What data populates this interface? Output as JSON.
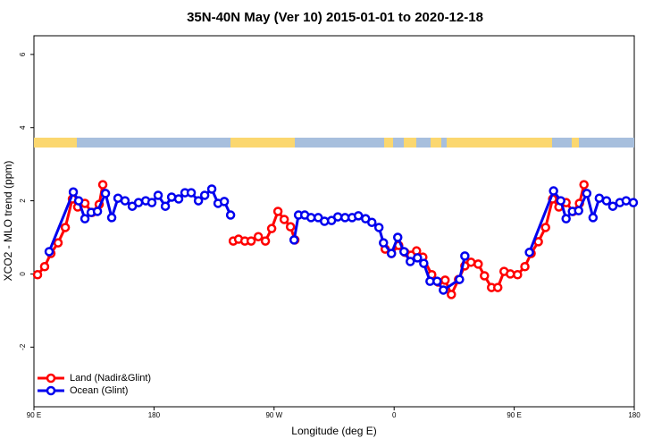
{
  "chart_data": {
    "type": "line",
    "title": "35N-40N May (Ver 10)   2015-01-01 to 2020-12-18",
    "xlabel": "Longitude (deg E)",
    "ylabel": "XCO2 - MLO trend (ppm)",
    "xlim": [
      90,
      540
    ],
    "ylim": [
      -3.63,
      6.51
    ],
    "xticks": [
      {
        "value": 90,
        "label": "90 E"
      },
      180,
      {
        "value": 270,
        "label": "90 W"
      },
      {
        "value": 360,
        "label": "0"
      },
      {
        "value": 450,
        "label": "90 E"
      },
      {
        "value": 540,
        "label": "180"
      }
    ],
    "yticks": [
      -2,
      0,
      2,
      4,
      6
    ],
    "legend": "bottom-left",
    "series": [
      {
        "name": "Land (Nadir&Glint)",
        "color": "#ff0000",
        "x": [
          92.7,
          98.0,
          102.7,
          108.1,
          113.5,
          118.8,
          122.8,
          128.2,
          133.6,
          138.9,
          141.6,
          200,
          239.4,
          243.4,
          248.1,
          252.8,
          258.2,
          263.5,
          268.2,
          272.9,
          277.6,
          282.3,
          285.6,
          320,
          353.3,
          358.0,
          363.4,
          368.1,
          372.7,
          376.8,
          381.5,
          388.2,
          392.9,
          398.2,
          402.9,
          408.3,
          413.0,
          417.6,
          423.0,
          427.7,
          433.0,
          437.7,
          442.4,
          447.1,
          452.5,
          458.0,
          462.7,
          468.1,
          473.5,
          478.8,
          483.5,
          488.9,
          494.2,
          498.9,
          502.3
        ],
        "values": [
          -0.02,
          0.2,
          0.56,
          0.85,
          1.27,
          2.05,
          1.83,
          1.93,
          1.68,
          1.9,
          2.44,
          null,
          0.9,
          0.95,
          0.9,
          0.9,
          1.02,
          0.9,
          1.24,
          1.71,
          1.49,
          1.29,
          0.93,
          null,
          0.68,
          0.56,
          0.78,
          0.59,
          0.51,
          0.63,
          0.46,
          -0.02,
          -0.22,
          -0.17,
          -0.56,
          -0.15,
          0.22,
          0.32,
          0.27,
          -0.05,
          -0.37,
          -0.37,
          0.07,
          0.0,
          -0.02,
          0.2,
          0.56,
          0.88,
          1.27,
          2.05,
          1.83,
          1.95,
          1.71,
          1.93,
          2.44
        ]
      },
      {
        "name": "Ocean (Glint)",
        "color": "#0000ee",
        "x": [
          101.4,
          119.5,
          123.5,
          128.2,
          132.9,
          137.6,
          143.6,
          148.3,
          153.0,
          158.3,
          163.7,
          168.4,
          173.8,
          178.4,
          183.1,
          188.5,
          193.2,
          198.5,
          203.2,
          207.9,
          213.3,
          218.0,
          223.3,
          228.0,
          232.7,
          237.4,
          260,
          285.0,
          288.3,
          293.0,
          297.7,
          303.1,
          307.8,
          313.1,
          317.8,
          323.2,
          328.5,
          333.2,
          338.6,
          343.3,
          348.6,
          352.0,
          358.0,
          362.7,
          367.4,
          372.1,
          377.5,
          382.2,
          386.9,
          392.2,
          396.9,
          409.0,
          413.0,
          440,
          461.4,
          479.5,
          484.9,
          488.9,
          493.6,
          498.3,
          504.4,
          509.1,
          513.8,
          519.2,
          523.9,
          529.2,
          533.9,
          539.3
        ],
        "values": [
          0.61,
          2.24,
          2.0,
          1.51,
          1.68,
          1.71,
          2.2,
          1.54,
          2.07,
          2.0,
          1.85,
          1.95,
          2.0,
          1.95,
          2.15,
          1.85,
          2.1,
          2.05,
          2.22,
          2.22,
          2.0,
          2.15,
          2.32,
          1.93,
          1.98,
          1.61,
          null,
          0.93,
          1.61,
          1.61,
          1.54,
          1.54,
          1.44,
          1.46,
          1.56,
          1.54,
          1.54,
          1.59,
          1.51,
          1.41,
          1.27,
          0.85,
          0.56,
          1.0,
          0.61,
          0.34,
          0.44,
          0.29,
          -0.2,
          -0.2,
          -0.44,
          -0.15,
          0.49,
          null,
          0.59,
          2.27,
          2.0,
          1.51,
          1.71,
          1.73,
          2.2,
          1.54,
          2.07,
          2.0,
          1.85,
          1.95,
          2.0,
          1.95
        ]
      }
    ]
  }
}
